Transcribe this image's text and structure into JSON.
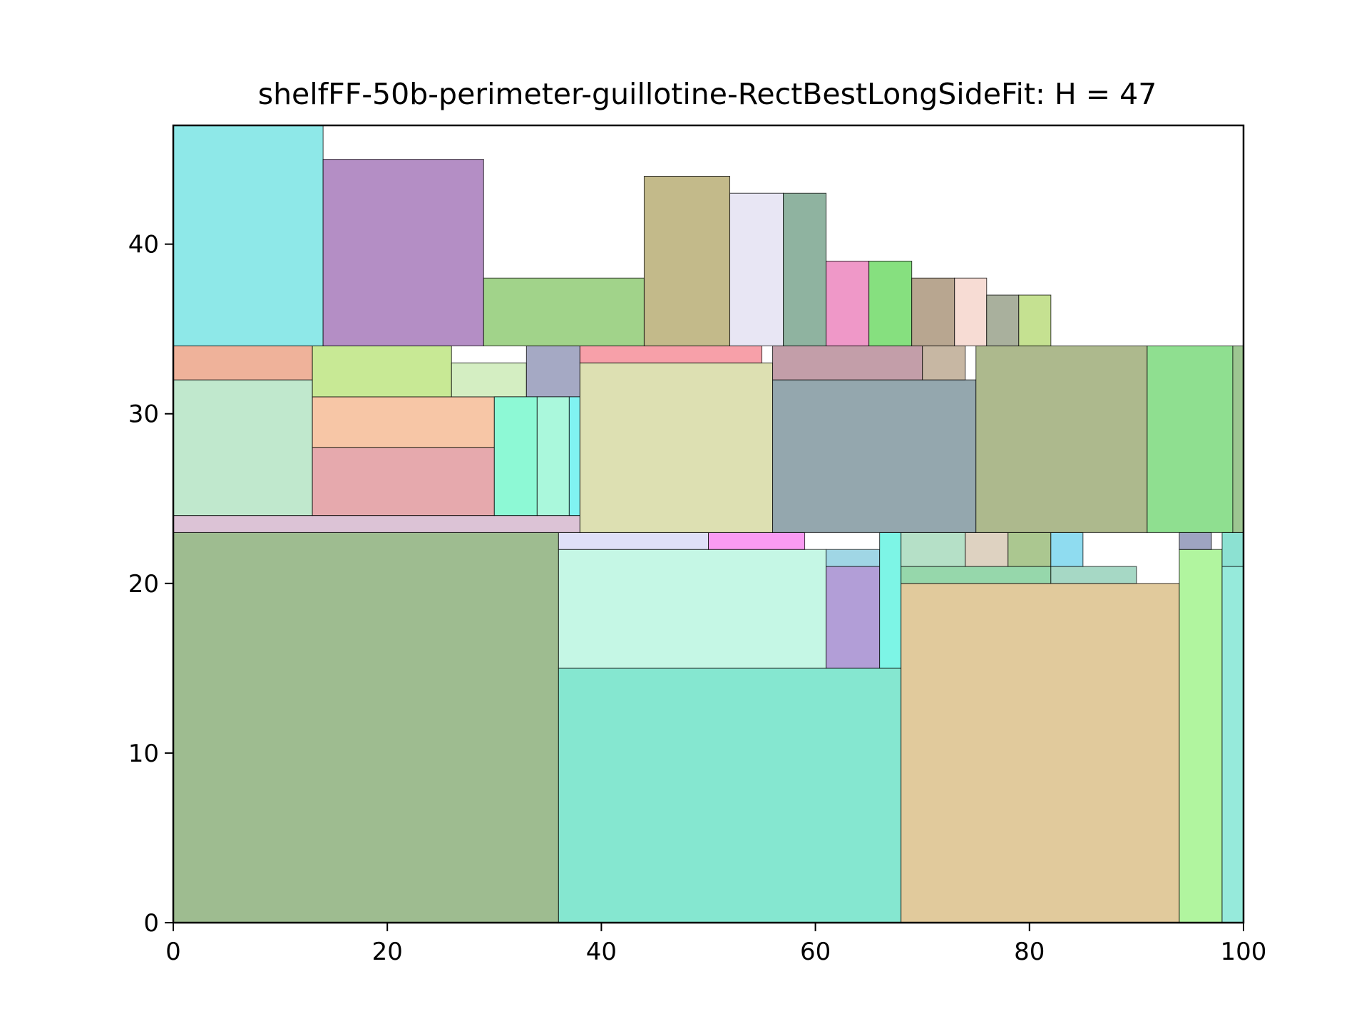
{
  "chart_data": {
    "type": "rectangle-packing",
    "title": "shelfFF-50b-perimeter-guillotine-RectBestLongSideFit: H = 47",
    "xlabel": "",
    "ylabel": "",
    "xlim": [
      0,
      100
    ],
    "ylim": [
      0,
      47
    ],
    "xticks": [
      0,
      20,
      40,
      60,
      80,
      100
    ],
    "xtick_labels": [
      "0",
      "20",
      "40",
      "60",
      "80",
      "100"
    ],
    "yticks": [
      0,
      10,
      20,
      30,
      40
    ],
    "ytick_labels": [
      "0",
      "10",
      "20",
      "30",
      "40"
    ],
    "grid": false,
    "rectangles": [
      {
        "x": 0,
        "y": 0,
        "w": 36,
        "h": 23,
        "color": "#9ebc90"
      },
      {
        "x": 36,
        "y": 0,
        "w": 32,
        "h": 15,
        "color": "#85e7d0"
      },
      {
        "x": 36,
        "y": 15,
        "w": 25,
        "h": 7,
        "color": "#c5f7e5"
      },
      {
        "x": 36,
        "y": 22,
        "w": 14,
        "h": 1,
        "color": "#dfdff8"
      },
      {
        "x": 50,
        "y": 22,
        "w": 9,
        "h": 1,
        "color": "#f99bf2"
      },
      {
        "x": 61,
        "y": 15,
        "w": 5,
        "h": 6,
        "color": "#b29ed7"
      },
      {
        "x": 61,
        "y": 21,
        "w": 5,
        "h": 1,
        "color": "#a0d6e5"
      },
      {
        "x": 66,
        "y": 15,
        "w": 2,
        "h": 8,
        "color": "#7df5e6"
      },
      {
        "x": 68,
        "y": 0,
        "w": 26,
        "h": 20,
        "color": "#e1ca9c"
      },
      {
        "x": 68,
        "y": 20,
        "w": 14,
        "h": 1,
        "color": "#96d7ab"
      },
      {
        "x": 68,
        "y": 21,
        "w": 6,
        "h": 2,
        "color": "#b5e0c7"
      },
      {
        "x": 74,
        "y": 21,
        "w": 4,
        "h": 2,
        "color": "#ded2c1"
      },
      {
        "x": 78,
        "y": 21,
        "w": 4,
        "h": 2,
        "color": "#abc790"
      },
      {
        "x": 82,
        "y": 20,
        "w": 8,
        "h": 1,
        "color": "#a6d8c5"
      },
      {
        "x": 82,
        "y": 21,
        "w": 3,
        "h": 2,
        "color": "#8fdcf0"
      },
      {
        "x": 94,
        "y": 0,
        "w": 4,
        "h": 22,
        "color": "#b1f59f"
      },
      {
        "x": 94,
        "y": 22,
        "w": 3,
        "h": 1,
        "color": "#9ea4c1"
      },
      {
        "x": 98,
        "y": 0,
        "w": 2,
        "h": 21,
        "color": "#96eadb"
      },
      {
        "x": 98,
        "y": 21,
        "w": 2,
        "h": 2,
        "color": "#8ce1d2"
      },
      {
        "x": 0,
        "y": 23,
        "w": 38,
        "h": 1,
        "color": "#dcc3d6"
      },
      {
        "x": 0,
        "y": 24,
        "w": 13,
        "h": 8,
        "color": "#c0e8cd"
      },
      {
        "x": 0,
        "y": 32,
        "w": 13,
        "h": 2,
        "color": "#efb29a"
      },
      {
        "x": 13,
        "y": 24,
        "w": 17,
        "h": 4,
        "color": "#e6a9ad"
      },
      {
        "x": 13,
        "y": 28,
        "w": 17,
        "h": 3,
        "color": "#f7c6a6"
      },
      {
        "x": 13,
        "y": 31,
        "w": 13,
        "h": 3,
        "color": "#c8e995"
      },
      {
        "x": 26,
        "y": 31,
        "w": 7,
        "h": 2,
        "color": "#d4eec2"
      },
      {
        "x": 33,
        "y": 31,
        "w": 5,
        "h": 3,
        "color": "#a5a9c4"
      },
      {
        "x": 30,
        "y": 24,
        "w": 4,
        "h": 7,
        "color": "#8df9d5"
      },
      {
        "x": 34,
        "y": 24,
        "w": 3,
        "h": 7,
        "color": "#aaf8dc"
      },
      {
        "x": 37,
        "y": 24,
        "w": 1,
        "h": 7,
        "color": "#80f3f2"
      },
      {
        "x": 38,
        "y": 23,
        "w": 18,
        "h": 10,
        "color": "#dde0b2"
      },
      {
        "x": 38,
        "y": 33,
        "w": 17,
        "h": 1,
        "color": "#f7a0a9"
      },
      {
        "x": 56,
        "y": 23,
        "w": 19,
        "h": 9,
        "color": "#94a7ae"
      },
      {
        "x": 56,
        "y": 32,
        "w": 14,
        "h": 2,
        "color": "#c39ea9"
      },
      {
        "x": 70,
        "y": 32,
        "w": 4,
        "h": 2,
        "color": "#c7b7a3"
      },
      {
        "x": 75,
        "y": 23,
        "w": 16,
        "h": 11,
        "color": "#adb98d"
      },
      {
        "x": 91,
        "y": 23,
        "w": 8,
        "h": 11,
        "color": "#8fdf90"
      },
      {
        "x": 99,
        "y": 23,
        "w": 1,
        "h": 11,
        "color": "#9dc691"
      },
      {
        "x": 0,
        "y": 34,
        "w": 14,
        "h": 13,
        "color": "#8ee8e8"
      },
      {
        "x": 14,
        "y": 34,
        "w": 15,
        "h": 11,
        "color": "#b48ec5"
      },
      {
        "x": 29,
        "y": 34,
        "w": 15,
        "h": 4,
        "color": "#a1d38a"
      },
      {
        "x": 44,
        "y": 34,
        "w": 8,
        "h": 10,
        "color": "#c3ba8a"
      },
      {
        "x": 52,
        "y": 34,
        "w": 5,
        "h": 9,
        "color": "#e8e6f4"
      },
      {
        "x": 57,
        "y": 34,
        "w": 4,
        "h": 9,
        "color": "#8fb3a0"
      },
      {
        "x": 61,
        "y": 34,
        "w": 4,
        "h": 5,
        "color": "#ef98c8"
      },
      {
        "x": 65,
        "y": 34,
        "w": 4,
        "h": 5,
        "color": "#86e07f"
      },
      {
        "x": 69,
        "y": 34,
        "w": 4,
        "h": 4,
        "color": "#b8a690"
      },
      {
        "x": 73,
        "y": 34,
        "w": 3,
        "h": 4,
        "color": "#f7dcd4"
      },
      {
        "x": 76,
        "y": 34,
        "w": 3,
        "h": 3,
        "color": "#a9b09d"
      },
      {
        "x": 79,
        "y": 34,
        "w": 3,
        "h": 3,
        "color": "#c5e191"
      }
    ]
  }
}
